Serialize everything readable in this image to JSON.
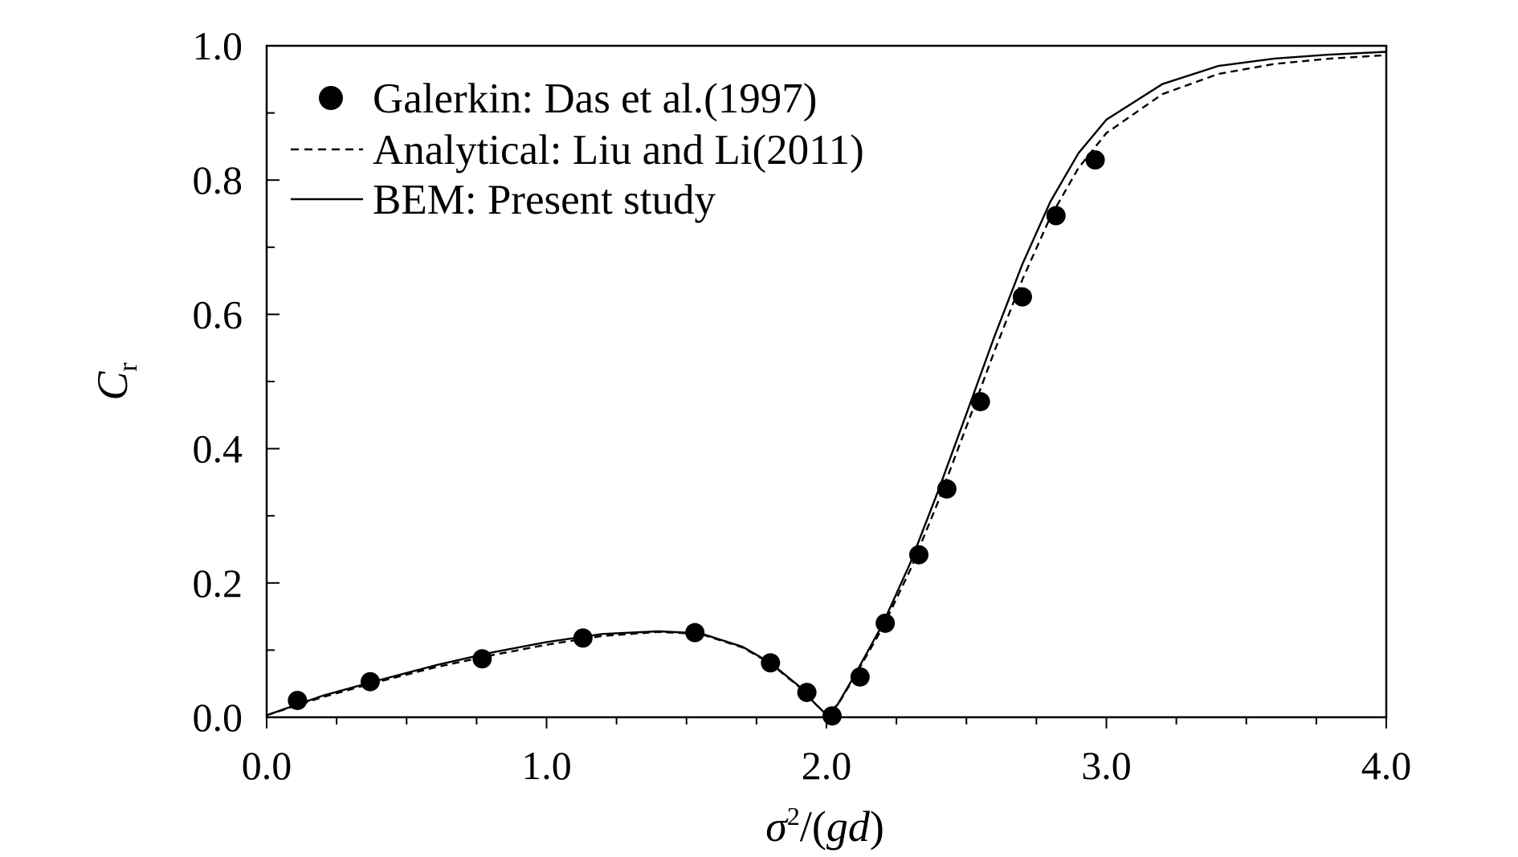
{
  "chart_data": {
    "type": "line",
    "title": "",
    "xlabel": "σ²/(gd)",
    "ylabel": "Cr",
    "xlim": [
      0,
      4
    ],
    "ylim": [
      0,
      1
    ],
    "x_ticks": [
      "0.0",
      "1.0",
      "2.0",
      "3.0",
      "4.0"
    ],
    "y_ticks": [
      "0.0",
      "0.2",
      "0.4",
      "0.6",
      "0.8",
      "1.0"
    ],
    "grid": false,
    "legend_position": "top-left",
    "series": [
      {
        "name": "Galerkin: Das et al.(1997)",
        "style": "marker",
        "x": [
          0.11,
          0.37,
          0.77,
          1.13,
          1.53,
          1.8,
          1.93,
          2.02,
          2.12,
          2.21,
          2.33,
          2.43,
          2.55,
          2.7,
          2.82,
          2.96
        ],
        "y": [
          0.025,
          0.053,
          0.087,
          0.118,
          0.126,
          0.081,
          0.037,
          0.002,
          0.06,
          0.14,
          0.242,
          0.34,
          0.47,
          0.626,
          0.747,
          0.83
        ]
      },
      {
        "name": "Analytical: Liu and Li(2011)",
        "style": "dashed",
        "x": [
          0.0,
          0.2,
          0.4,
          0.6,
          0.8,
          1.0,
          1.2,
          1.4,
          1.55,
          1.7,
          1.8,
          1.9,
          1.96,
          2.0,
          2.04,
          2.1,
          2.2,
          2.3,
          2.4,
          2.5,
          2.6,
          2.7,
          2.8,
          2.9,
          3.0,
          3.2,
          3.4,
          3.6,
          3.8,
          4.0
        ],
        "y": [
          0.003,
          0.03,
          0.053,
          0.074,
          0.092,
          0.108,
          0.121,
          0.127,
          0.124,
          0.104,
          0.08,
          0.046,
          0.02,
          0.004,
          0.018,
          0.06,
          0.133,
          0.22,
          0.322,
          0.433,
          0.545,
          0.652,
          0.745,
          0.818,
          0.87,
          0.928,
          0.958,
          0.973,
          0.981,
          0.986
        ]
      },
      {
        "name": "BEM: Present study",
        "style": "solid",
        "x": [
          0.0,
          0.2,
          0.4,
          0.6,
          0.8,
          1.0,
          1.2,
          1.4,
          1.55,
          1.7,
          1.8,
          1.9,
          1.96,
          2.0,
          2.04,
          2.1,
          2.2,
          2.3,
          2.4,
          2.5,
          2.6,
          2.7,
          2.8,
          2.9,
          3.0,
          3.2,
          3.4,
          3.6,
          3.8,
          4.0
        ],
        "y": [
          0.003,
          0.032,
          0.055,
          0.077,
          0.096,
          0.112,
          0.124,
          0.128,
          0.125,
          0.105,
          0.081,
          0.047,
          0.02,
          0.004,
          0.019,
          0.062,
          0.138,
          0.23,
          0.338,
          0.452,
          0.567,
          0.675,
          0.768,
          0.84,
          0.89,
          0.943,
          0.97,
          0.981,
          0.987,
          0.991
        ]
      }
    ]
  }
}
